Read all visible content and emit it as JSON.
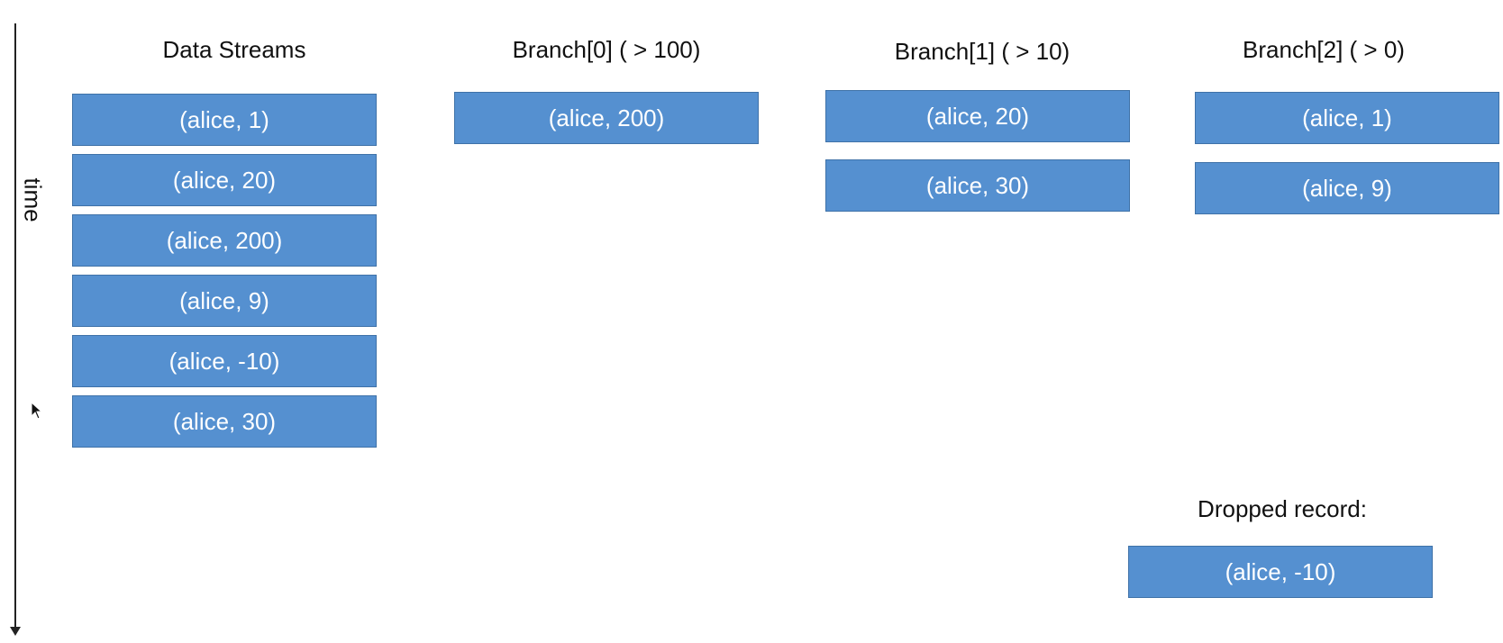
{
  "time_label": "time",
  "columns": {
    "streams": {
      "title": "Data Streams",
      "records": [
        "(alice, 1)",
        "(alice, 20)",
        "(alice, 200)",
        "(alice, 9)",
        "(alice, -10)",
        "(alice, 30)"
      ]
    },
    "branch0": {
      "title": "Branch[0] ( > 100)",
      "records": [
        "(alice, 200)"
      ]
    },
    "branch1": {
      "title": "Branch[1] ( > 10)",
      "records": [
        "(alice, 20)",
        "(alice, 30)"
      ]
    },
    "branch2": {
      "title": "Branch[2] ( > 0)",
      "records": [
        "(alice, 1)",
        "(alice, 9)"
      ]
    },
    "dropped": {
      "title": "Dropped record:",
      "records": [
        "(alice, -10)"
      ]
    }
  },
  "colors": {
    "record_fill": "#5590d0",
    "record_border": "#3f72a8",
    "record_text": "#ffffff"
  },
  "icons": {
    "cursor": "mouse-pointer-icon"
  }
}
